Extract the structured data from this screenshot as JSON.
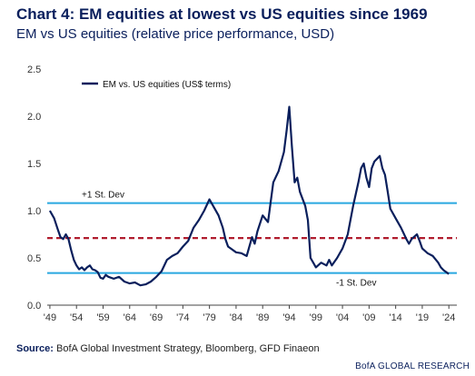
{
  "chart_data": {
    "type": "line",
    "title": "Chart 4: EM equities at lowest vs US equities since 1969",
    "subtitle": "EM vs US equities (relative price performance, USD)",
    "series": [
      {
        "name": "EM vs. US equities (US$ terms)",
        "color": "#0a1f5c",
        "points": [
          [
            1949.0,
            1.0
          ],
          [
            1949.8,
            0.92
          ],
          [
            1950.5,
            0.8
          ],
          [
            1951.0,
            0.72
          ],
          [
            1951.5,
            0.7
          ],
          [
            1952.0,
            0.75
          ],
          [
            1952.5,
            0.7
          ],
          [
            1953.0,
            0.58
          ],
          [
            1953.5,
            0.48
          ],
          [
            1954.0,
            0.42
          ],
          [
            1954.5,
            0.38
          ],
          [
            1955.0,
            0.4
          ],
          [
            1955.5,
            0.37
          ],
          [
            1956.0,
            0.4
          ],
          [
            1956.5,
            0.42
          ],
          [
            1957.0,
            0.38
          ],
          [
            1957.5,
            0.37
          ],
          [
            1958.0,
            0.35
          ],
          [
            1958.5,
            0.29
          ],
          [
            1959.0,
            0.28
          ],
          [
            1959.5,
            0.32
          ],
          [
            1960.0,
            0.3
          ],
          [
            1961.0,
            0.28
          ],
          [
            1962.0,
            0.3
          ],
          [
            1963.0,
            0.25
          ],
          [
            1964.0,
            0.23
          ],
          [
            1965.0,
            0.24
          ],
          [
            1966.0,
            0.21
          ],
          [
            1967.0,
            0.22
          ],
          [
            1968.0,
            0.25
          ],
          [
            1969.0,
            0.3
          ],
          [
            1970.0,
            0.36
          ],
          [
            1971.0,
            0.48
          ],
          [
            1972.0,
            0.52
          ],
          [
            1973.0,
            0.55
          ],
          [
            1974.0,
            0.62
          ],
          [
            1975.0,
            0.68
          ],
          [
            1976.0,
            0.82
          ],
          [
            1977.0,
            0.9
          ],
          [
            1978.0,
            1.0
          ],
          [
            1979.0,
            1.12
          ],
          [
            1980.0,
            1.02
          ],
          [
            1980.7,
            0.95
          ],
          [
            1981.5,
            0.82
          ],
          [
            1982.0,
            0.7
          ],
          [
            1982.5,
            0.62
          ],
          [
            1983.0,
            0.6
          ],
          [
            1984.0,
            0.56
          ],
          [
            1985.0,
            0.55
          ],
          [
            1986.0,
            0.52
          ],
          [
            1987.0,
            0.72
          ],
          [
            1987.5,
            0.65
          ],
          [
            1988.0,
            0.78
          ],
          [
            1989.0,
            0.95
          ],
          [
            1990.0,
            0.88
          ],
          [
            1991.0,
            1.3
          ],
          [
            1992.0,
            1.42
          ],
          [
            1993.0,
            1.62
          ],
          [
            1993.5,
            1.85
          ],
          [
            1994.0,
            2.1
          ],
          [
            1994.5,
            1.68
          ],
          [
            1995.0,
            1.3
          ],
          [
            1995.5,
            1.35
          ],
          [
            1996.0,
            1.2
          ],
          [
            1997.0,
            1.05
          ],
          [
            1997.5,
            0.9
          ],
          [
            1998.0,
            0.5
          ],
          [
            1998.5,
            0.45
          ],
          [
            1999.0,
            0.4
          ],
          [
            2000.0,
            0.45
          ],
          [
            2001.0,
            0.42
          ],
          [
            2001.5,
            0.48
          ],
          [
            2002.0,
            0.42
          ],
          [
            2003.0,
            0.5
          ],
          [
            2004.0,
            0.6
          ],
          [
            2005.0,
            0.75
          ],
          [
            2006.0,
            1.05
          ],
          [
            2007.0,
            1.3
          ],
          [
            2007.5,
            1.45
          ],
          [
            2008.0,
            1.5
          ],
          [
            2008.5,
            1.35
          ],
          [
            2009.0,
            1.25
          ],
          [
            2009.5,
            1.45
          ],
          [
            2010.0,
            1.52
          ],
          [
            2011.0,
            1.58
          ],
          [
            2011.5,
            1.45
          ],
          [
            2012.0,
            1.38
          ],
          [
            2012.5,
            1.2
          ],
          [
            2013.0,
            1.02
          ],
          [
            2014.0,
            0.92
          ],
          [
            2015.0,
            0.82
          ],
          [
            2016.0,
            0.7
          ],
          [
            2016.5,
            0.65
          ],
          [
            2017.0,
            0.7
          ],
          [
            2018.0,
            0.75
          ],
          [
            2018.5,
            0.68
          ],
          [
            2019.0,
            0.6
          ],
          [
            2020.0,
            0.55
          ],
          [
            2021.0,
            0.52
          ],
          [
            2022.0,
            0.45
          ],
          [
            2022.5,
            0.4
          ],
          [
            2023.0,
            0.37
          ],
          [
            2024.0,
            0.33
          ]
        ]
      }
    ],
    "reference_lines": [
      {
        "value": 1.08,
        "label": "+1 St. Dev",
        "color": "#29a8e0",
        "style": "solid"
      },
      {
        "value": 0.71,
        "label": "",
        "color": "#b01c2e",
        "style": "dashed"
      },
      {
        "value": 0.34,
        "label": "-1 St. Dev",
        "color": "#29a8e0",
        "style": "solid"
      }
    ],
    "x_ticks": [
      "'49",
      "'54",
      "'59",
      "'64",
      "'69",
      "'74",
      "'79",
      "'84",
      "'89",
      "'94",
      "'99",
      "'04",
      "'09",
      "'14",
      "'19",
      "'24"
    ],
    "x_tick_years": [
      1949,
      1954,
      1959,
      1964,
      1969,
      1974,
      1979,
      1984,
      1989,
      1994,
      1999,
      2004,
      2009,
      2014,
      2019,
      2024
    ],
    "y_ticks": [
      "0.0",
      "0.5",
      "1.0",
      "1.5",
      "2.0",
      "2.5"
    ],
    "y_tick_values": [
      0,
      0.5,
      1.0,
      1.5,
      2.0,
      2.5
    ],
    "xlim": [
      1948.5,
      2025.5
    ],
    "ylim": [
      0,
      2.5
    ],
    "grid": false,
    "legend_position": "top-left"
  },
  "source": {
    "label": "Source:",
    "text": "BofA Global Investment Strategy, Bloomberg, GFD Finaeon"
  },
  "brand": "BofA GLOBAL RESEARCH"
}
